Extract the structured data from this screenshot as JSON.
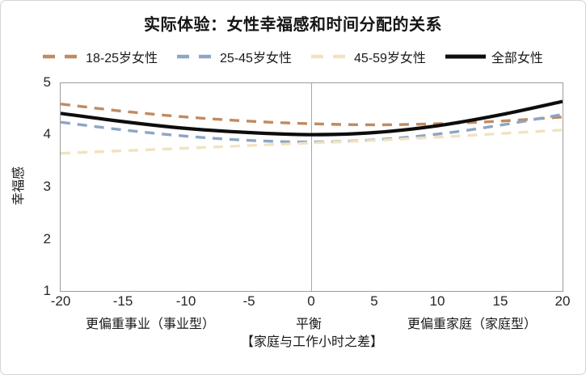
{
  "chart_data": {
    "type": "line",
    "title": "实际体验：女性幸福感和时间分配的关系",
    "ylabel": "幸福感",
    "xlabel": "【家庭与工作小时之差】",
    "xlim": [
      -20,
      20
    ],
    "ylim": [
      1,
      5
    ],
    "gridline_x": 0,
    "grid": "single vertical gridline at x=0 only",
    "legend_position": "top",
    "axis_color": "#9b9b9b",
    "x": [
      -20,
      -15,
      -10,
      -5,
      0,
      5,
      10,
      15,
      20
    ],
    "x_tick_labels": [
      "-20",
      "-15",
      "-10",
      "-5",
      "0",
      "5",
      "10",
      "15",
      "20"
    ],
    "y_tick_labels": [
      "5",
      "4",
      "3",
      "2",
      "1"
    ],
    "x_annotations": {
      "left": "更偏重事业（事业型）",
      "center": "平衡",
      "right": "更偏重家庭（家庭型）"
    },
    "series": [
      {
        "name": "18-25岁女性",
        "color": "#C28A5F",
        "style": "dashed",
        "values": [
          4.6,
          4.46,
          4.35,
          4.27,
          4.22,
          4.2,
          4.22,
          4.27,
          4.35
        ]
      },
      {
        "name": "25-45岁女性",
        "color": "#8CA6C5",
        "style": "dashed",
        "values": [
          4.25,
          4.1,
          3.98,
          3.9,
          3.87,
          3.91,
          4.02,
          4.19,
          4.4
        ]
      },
      {
        "name": "45-59岁女性",
        "color": "#F1E3C0",
        "style": "dashed",
        "values": [
          3.65,
          3.7,
          3.75,
          3.8,
          3.85,
          3.9,
          3.96,
          4.03,
          4.1
        ]
      },
      {
        "name": "全部女性",
        "color": "#0d0d0d",
        "style": "solid",
        "values": [
          4.42,
          4.26,
          4.13,
          4.05,
          4.01,
          4.05,
          4.18,
          4.39,
          4.65
        ]
      }
    ]
  }
}
